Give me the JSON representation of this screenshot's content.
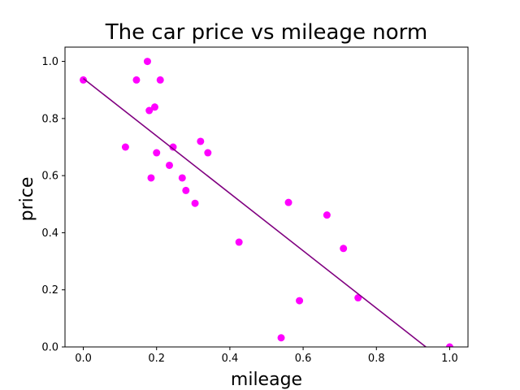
{
  "chart_data": {
    "type": "scatter",
    "title": "The car price vs mileage norm",
    "xlabel": "mileage",
    "ylabel": "price",
    "xlim": [
      -0.05,
      1.05
    ],
    "ylim": [
      0.0,
      1.05
    ],
    "xticks": [
      "0.0",
      "0.2",
      "0.4",
      "0.6",
      "0.8",
      "1.0"
    ],
    "yticks": [
      "0.0",
      "0.2",
      "0.4",
      "0.6",
      "0.8",
      "1.0"
    ],
    "grid": false,
    "series": [
      {
        "kind": "scatter",
        "color": "#ff00ff",
        "points": [
          [
            0.0,
            0.935
          ],
          [
            0.115,
            0.7
          ],
          [
            0.145,
            0.935
          ],
          [
            0.175,
            1.0
          ],
          [
            0.18,
            0.828
          ],
          [
            0.185,
            0.592
          ],
          [
            0.195,
            0.84
          ],
          [
            0.2,
            0.68
          ],
          [
            0.21,
            0.935
          ],
          [
            0.235,
            0.636
          ],
          [
            0.245,
            0.7
          ],
          [
            0.27,
            0.592
          ],
          [
            0.28,
            0.548
          ],
          [
            0.305,
            0.503
          ],
          [
            0.32,
            0.72
          ],
          [
            0.34,
            0.68
          ],
          [
            0.425,
            0.367
          ],
          [
            0.54,
            0.032
          ],
          [
            0.56,
            0.506
          ],
          [
            0.59,
            0.162
          ],
          [
            0.665,
            0.462
          ],
          [
            0.71,
            0.345
          ],
          [
            0.75,
            0.172
          ],
          [
            1.0,
            0.0
          ]
        ]
      },
      {
        "kind": "line",
        "color": "#800080",
        "points": [
          [
            0.0,
            0.94
          ],
          [
            0.935,
            0.0
          ]
        ]
      }
    ]
  }
}
